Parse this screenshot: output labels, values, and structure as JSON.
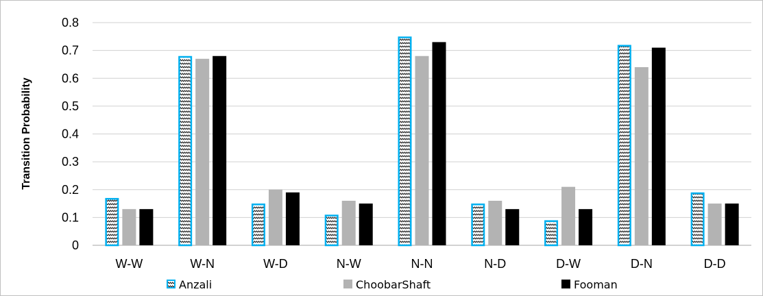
{
  "chart_data": {
    "type": "bar",
    "ylabel": "Transition Probability",
    "xlabel": "",
    "ylim": [
      0,
      0.8
    ],
    "yticks": [
      "0",
      "0.1",
      "0.2",
      "0.3",
      "0.4",
      "0.5",
      "0.6",
      "0.7",
      "0.8"
    ],
    "grid": true,
    "legend_position": "bottom",
    "categories": [
      "W-W",
      "W-N",
      "W-D",
      "N-W",
      "N-N",
      "N-D",
      "D-W",
      "D-N",
      "D-D"
    ],
    "series": [
      {
        "name": "Anzali",
        "values": [
          0.17,
          0.68,
          0.15,
          0.11,
          0.75,
          0.15,
          0.09,
          0.72,
          0.19
        ],
        "color": "#ffffff",
        "stroke": "#00b0f0",
        "pattern": "zigzag"
      },
      {
        "name": "ChoobarShaft",
        "values": [
          0.13,
          0.67,
          0.2,
          0.16,
          0.68,
          0.16,
          0.21,
          0.64,
          0.15
        ],
        "color": "#b3b3b3"
      },
      {
        "name": "Fooman",
        "values": [
          0.13,
          0.68,
          0.19,
          0.15,
          0.73,
          0.13,
          0.13,
          0.71,
          0.15
        ],
        "color": "#000000"
      }
    ]
  }
}
